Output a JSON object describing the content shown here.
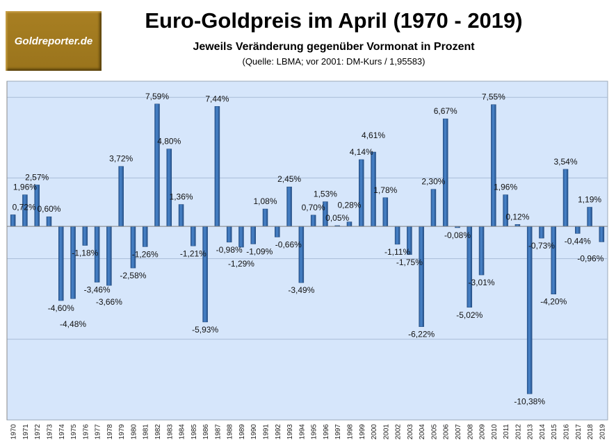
{
  "logo": {
    "text": "Goldreporter.de"
  },
  "chart_data": {
    "type": "bar",
    "title": "Euro-Goldpreis im April (1970 - 2019)",
    "subtitle": "Jeweils Veränderung gegenüber Vormonat in Prozent",
    "source": "(Quelle: LBMA; vor 2001: DM-Kurs / 1,95583)",
    "xlabel": "",
    "ylabel": "",
    "ylim": [
      -12,
      9
    ],
    "gridlines": [
      -7,
      -2,
      3,
      8
    ],
    "grid": true,
    "legend": "none",
    "colors": {
      "bar": "#3a6fb0",
      "plot_bg": "#d6e6fb",
      "grid": "#a8bcd8"
    },
    "categories": [
      "1970",
      "1971",
      "1972",
      "1973",
      "1974",
      "1975",
      "1976",
      "1977",
      "1978",
      "1979",
      "1980",
      "1981",
      "1982",
      "1983",
      "1984",
      "1985",
      "1986",
      "1987",
      "1988",
      "1989",
      "1990",
      "1991",
      "1992",
      "1993",
      "1994",
      "1995",
      "1996",
      "1997",
      "1998",
      "1999",
      "2000",
      "2001",
      "2002",
      "2003",
      "2004",
      "2005",
      "2006",
      "2007",
      "2008",
      "2009",
      "2010",
      "2011",
      "2012",
      "2013",
      "2014",
      "2015",
      "2016",
      "2017",
      "2018",
      "2019"
    ],
    "values": [
      0.72,
      1.96,
      2.57,
      0.6,
      -4.6,
      -4.48,
      -1.18,
      -3.46,
      -3.66,
      3.72,
      -2.58,
      -1.26,
      7.59,
      4.8,
      1.36,
      -1.21,
      -5.93,
      7.44,
      -0.98,
      -1.29,
      -1.09,
      1.08,
      -0.66,
      2.45,
      -3.49,
      0.7,
      1.53,
      0.05,
      0.28,
      4.14,
      4.61,
      1.78,
      -1.11,
      -1.75,
      -6.22,
      2.3,
      6.67,
      -0.08,
      -5.02,
      -3.01,
      7.55,
      1.96,
      0.12,
      -10.38,
      -0.73,
      -4.2,
      3.54,
      -0.44,
      1.19,
      -0.96
    ],
    "data_labels": [
      "0,72%",
      "1,96%",
      "2,57%",
      "0,60%",
      "-4,60%",
      "-4,48%",
      "-1,18%",
      "-3,46%",
      "-3,66%",
      "3,72%",
      "-2,58%",
      "-1,26%",
      "7,59%",
      "4,80%",
      "1,36%",
      "-1,21%",
      "-5,93%",
      "7,44%",
      "-0,98%",
      "-1,29%",
      "-1,09%",
      "1,08%",
      "-0,66%",
      "2,45%",
      "-3,49%",
      "0,70%",
      "1,53%",
      "0,05%",
      "0,28%",
      "4,14%",
      "4,61%",
      "1,78%",
      "-1,11%",
      "-1,75%",
      "-6,22%",
      "2,30%",
      "6,67%",
      "-0,08%",
      "-5,02%",
      "-3,01%",
      "7,55%",
      "1,96%",
      "0,12%",
      "-10,38%",
      "-0,73%",
      "-4,20%",
      "3,54%",
      "-0,44%",
      "1,19%",
      "-0,96%"
    ]
  }
}
